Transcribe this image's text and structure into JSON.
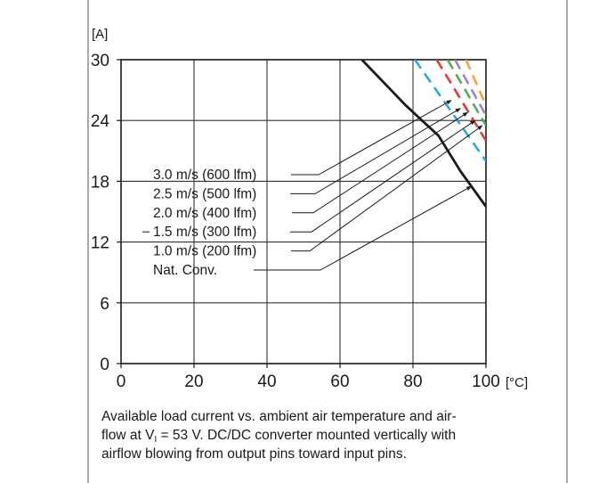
{
  "chart_data": {
    "type": "line",
    "ylabel": "[A]",
    "xunit": "[°C]",
    "xlim": [
      0,
      100
    ],
    "ylim": [
      0,
      30
    ],
    "xticks": [
      0,
      20,
      40,
      60,
      80,
      100
    ],
    "yticks": [
      0,
      6,
      12,
      18,
      24,
      30
    ],
    "grid": true,
    "legend_placement": "left-center, with leader arrows to curves",
    "series": [
      {
        "name": "3.0 m/s (600 lfm)",
        "color": "#f2a33a",
        "style": "dashed",
        "x": [
          94.5,
          100
        ],
        "y": [
          30,
          25.5
        ]
      },
      {
        "name": "2.5 m/s (500 lfm)",
        "color": "#a77fc9",
        "style": "dashed",
        "x": [
          91.5,
          100
        ],
        "y": [
          30,
          24.5
        ]
      },
      {
        "name": "2.0 m/s (400 lfm)",
        "color": "#4caf50",
        "style": "dashed",
        "x": [
          89.5,
          100
        ],
        "y": [
          30,
          23.5
        ]
      },
      {
        "name": "1.5 m/s (300 lfm)",
        "color": "#e53935",
        "style": "dashed",
        "x": [
          86.5,
          100
        ],
        "y": [
          30,
          22.0
        ]
      },
      {
        "name": "1.0 m/s (200 lfm)",
        "color": "#29a8e0",
        "style": "dashed",
        "x": [
          80.5,
          100
        ],
        "y": [
          30,
          20.0
        ]
      },
      {
        "name": "Nat. Conv.",
        "color": "#1a1a1a",
        "style": "solid",
        "x": [
          66,
          78,
          87,
          93,
          100
        ],
        "y": [
          30,
          25.5,
          22.5,
          19.0,
          15.5
        ]
      }
    ],
    "legend_arrow_targets": [
      {
        "label": "3.0 m/s (600 lfm)",
        "x": 90.5,
        "y": 26.0
      },
      {
        "label": "2.5 m/s (500 lfm)",
        "x": 93.0,
        "y": 25.2
      },
      {
        "label": "2.0 m/s (400 lfm)",
        "x": 95.0,
        "y": 24.8
      },
      {
        "label": "1.5 m/s (300 lfm)",
        "x": 97.0,
        "y": 24.0
      },
      {
        "label": "1.0 m/s (200 lfm)",
        "x": 99.0,
        "y": 23.5
      },
      {
        "label": "Nat. Conv.",
        "x": 96.0,
        "y": 17.5
      }
    ]
  },
  "caption": {
    "line1": "Available load current vs. ambient air temperature and air-",
    "line2_pre": "flow at V",
    "line2_sub": "I",
    "line2_post": " = 53 V. DC/DC converter mounted vertically with",
    "line3": "airflow blowing from output pins toward input pins."
  }
}
